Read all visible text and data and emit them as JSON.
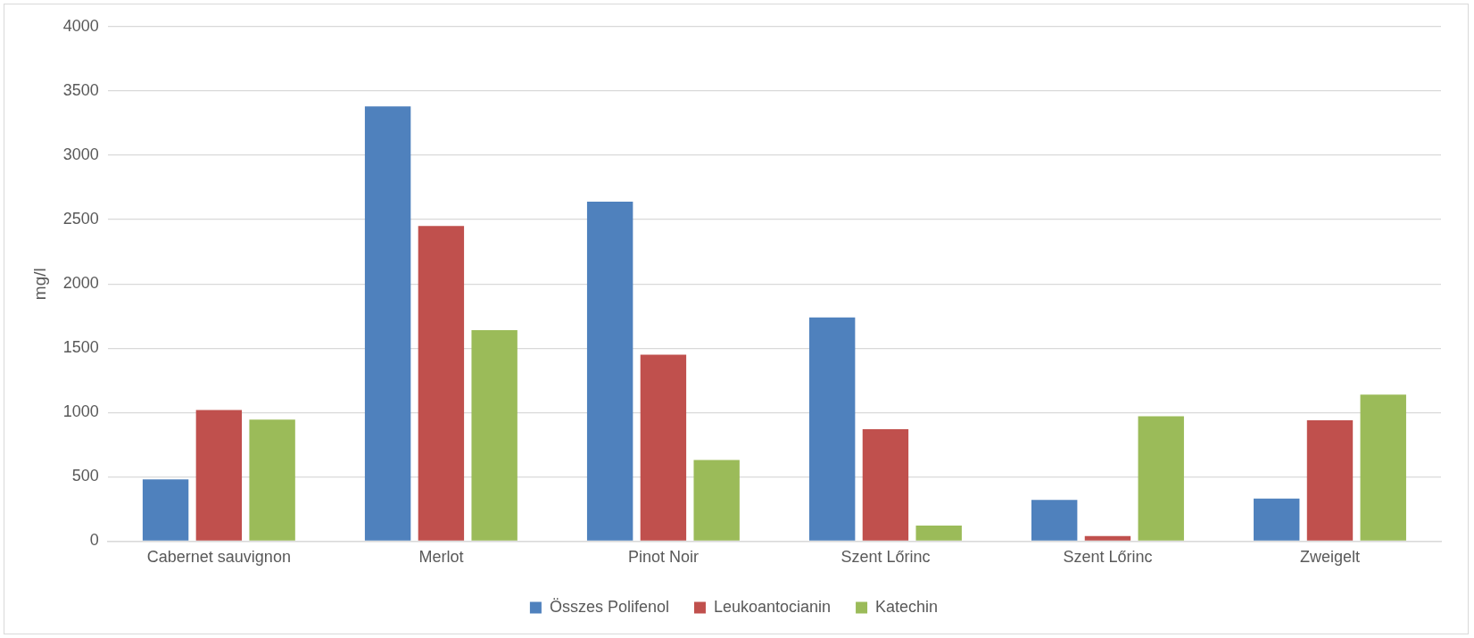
{
  "chart_data": {
    "type": "bar",
    "ylabel": "mg/l",
    "categories": [
      "Cabernet sauvignon",
      "Merlot",
      "Pinot Noir",
      "Szent Lőrinc",
      "Szent Lőrinc",
      "Zweigelt"
    ],
    "series": [
      {
        "name": "Összes Polifenol",
        "color": "#4f81bd",
        "values": [
          480,
          3380,
          2640,
          1740,
          320,
          330
        ]
      },
      {
        "name": "Leukoantocianin",
        "color": "#c0504d",
        "values": [
          1020,
          2450,
          1450,
          870,
          40,
          940
        ]
      },
      {
        "name": "Katechin",
        "color": "#9bbb59",
        "values": [
          945,
          1640,
          630,
          120,
          970,
          1140
        ]
      }
    ],
    "ylim": [
      0,
      4000
    ],
    "yticks": [
      0,
      500,
      1000,
      1500,
      2000,
      2500,
      3000,
      3500,
      4000
    ],
    "grid": "y",
    "legend": "bottom"
  }
}
